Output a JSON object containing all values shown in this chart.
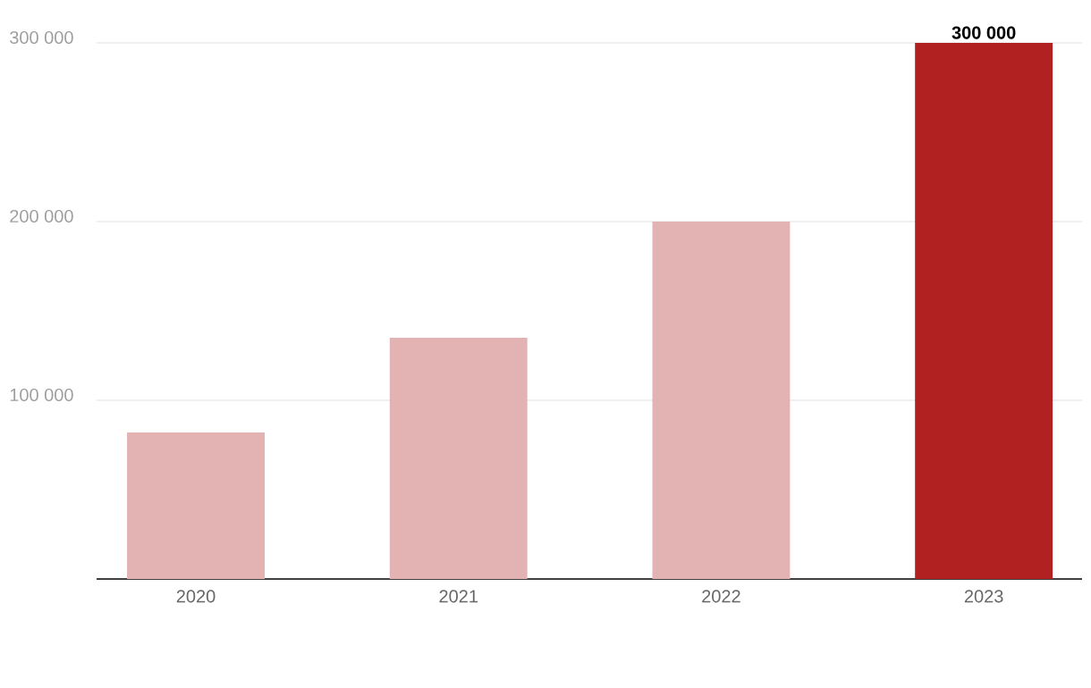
{
  "chart_data": {
    "type": "bar",
    "categories": [
      "2020",
      "2021",
      "2022",
      "2023"
    ],
    "values": [
      82000,
      135000,
      200000,
      300000
    ],
    "colors": [
      "#e3b3b4",
      "#e3b3b4",
      "#e3b3b4",
      "#b12122"
    ],
    "value_labels": [
      null,
      null,
      null,
      "300 000"
    ],
    "ylim": [
      0,
      300000
    ],
    "yticks": [
      {
        "value": 100000,
        "label": "100 000"
      },
      {
        "value": 200000,
        "label": "200 000"
      },
      {
        "value": 300000,
        "label": "300 000"
      }
    ],
    "grid": "y"
  }
}
